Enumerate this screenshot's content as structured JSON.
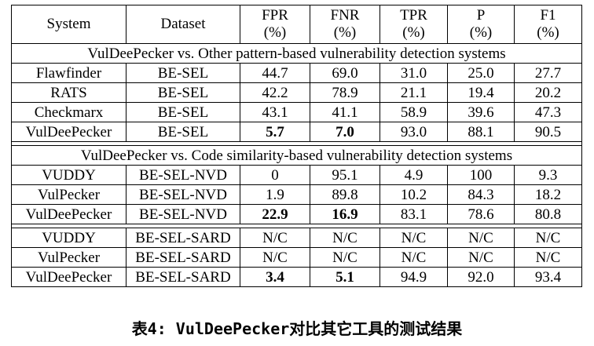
{
  "columns": [
    {
      "line1": "System",
      "line2": ""
    },
    {
      "line1": "Dataset",
      "line2": ""
    },
    {
      "line1": "FPR",
      "line2": "(%)"
    },
    {
      "line1": "FNR",
      "line2": "(%)"
    },
    {
      "line1": "TPR",
      "line2": "(%)"
    },
    {
      "line1": "P",
      "line2": "(%)"
    },
    {
      "line1": "F1",
      "line2": "(%)"
    }
  ],
  "sections": [
    {
      "title": "VulDeePecker vs. Other pattern-based vulnerability detection systems",
      "rows": [
        {
          "cells": [
            "Flawfinder",
            "BE-SEL",
            "44.7",
            "69.0",
            "31.0",
            "25.0",
            "27.7"
          ],
          "bold": []
        },
        {
          "cells": [
            "RATS",
            "BE-SEL",
            "42.2",
            "78.9",
            "21.1",
            "19.4",
            "20.2"
          ],
          "bold": []
        },
        {
          "cells": [
            "Checkmarx",
            "BE-SEL",
            "43.1",
            "41.1",
            "58.9",
            "39.6",
            "47.3"
          ],
          "bold": []
        },
        {
          "cells": [
            "VulDeePecker",
            "BE-SEL",
            "5.7",
            "7.0",
            "93.0",
            "88.1",
            "90.5"
          ],
          "bold": [
            2,
            3
          ]
        }
      ]
    },
    {
      "title": "VulDeePecker vs. Code similarity-based vulnerability detection systems",
      "rows": [
        {
          "cells": [
            "VUDDY",
            "BE-SEL-NVD",
            "0",
            "95.1",
            "4.9",
            "100",
            "9.3"
          ],
          "bold": []
        },
        {
          "cells": [
            "VulPecker",
            "BE-SEL-NVD",
            "1.9",
            "89.8",
            "10.2",
            "84.3",
            "18.2"
          ],
          "bold": []
        },
        {
          "cells": [
            "VulDeePecker",
            "BE-SEL-NVD",
            "22.9",
            "16.9",
            "83.1",
            "78.6",
            "80.8"
          ],
          "bold": [
            2,
            3
          ]
        }
      ]
    },
    {
      "title": "",
      "rows": [
        {
          "cells": [
            "VUDDY",
            "BE-SEL-SARD",
            "N/C",
            "N/C",
            "N/C",
            "N/C",
            "N/C"
          ],
          "bold": []
        },
        {
          "cells": [
            "VulPecker",
            "BE-SEL-SARD",
            "N/C",
            "N/C",
            "N/C",
            "N/C",
            "N/C"
          ],
          "bold": []
        },
        {
          "cells": [
            "VulDeePecker",
            "BE-SEL-SARD",
            "3.4",
            "5.1",
            "94.9",
            "92.0",
            "93.4"
          ],
          "bold": [
            2,
            3
          ]
        }
      ]
    }
  ],
  "caption": "表4: VulDeePecker对比其它工具的测试结果"
}
